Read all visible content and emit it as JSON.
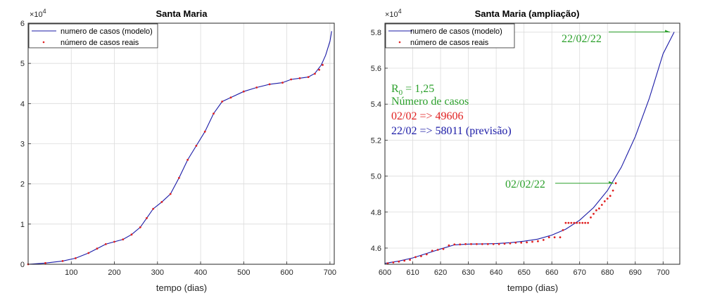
{
  "chart_data": [
    {
      "type": "line",
      "title": "Santa Maria",
      "xlabel": "tempo (dias)",
      "ylabel": "",
      "xlim": [
        0,
        710
      ],
      "ylim": [
        0,
        60000
      ],
      "y_exponent_label": "×10",
      "y_exponent_power": "4",
      "xticks": [
        100,
        200,
        300,
        400,
        500,
        600,
        700
      ],
      "yticks": [
        0,
        1,
        2,
        3,
        4,
        5,
        6
      ],
      "grid": true,
      "legend_position": "top-left",
      "series": [
        {
          "name": "numero de casos (modelo)",
          "style": "line",
          "color": "#1a1aa6",
          "x": [
            0,
            40,
            80,
            110,
            140,
            160,
            180,
            200,
            220,
            240,
            260,
            275,
            290,
            310,
            330,
            350,
            370,
            390,
            410,
            430,
            450,
            470,
            500,
            530,
            560,
            590,
            610,
            630,
            650,
            665,
            680,
            690,
            700,
            704
          ],
          "y": [
            0,
            300,
            800,
            1500,
            2800,
            3900,
            5000,
            5600,
            6200,
            7400,
            9200,
            11500,
            13800,
            15500,
            17500,
            21500,
            26000,
            29500,
            33000,
            37500,
            40500,
            41500,
            43000,
            44000,
            44800,
            45200,
            46000,
            46300,
            46600,
            47500,
            49606,
            52000,
            55500,
            58011
          ]
        },
        {
          "name": "número de casos reais",
          "style": "dots",
          "color": "#e02020",
          "x": [
            0,
            40,
            80,
            110,
            140,
            160,
            180,
            200,
            220,
            240,
            260,
            275,
            290,
            310,
            330,
            350,
            370,
            390,
            410,
            430,
            450,
            470,
            500,
            530,
            560,
            590,
            610,
            630,
            650,
            665,
            675,
            683
          ],
          "y": [
            0,
            300,
            800,
            1500,
            2800,
            3900,
            5000,
            5600,
            6200,
            7400,
            9200,
            11500,
            13800,
            15500,
            17500,
            21500,
            26000,
            29500,
            33000,
            37500,
            40500,
            41500,
            43000,
            44000,
            44800,
            45200,
            46000,
            46300,
            46600,
            47400,
            48400,
            49606
          ]
        }
      ]
    },
    {
      "type": "line",
      "title": "Santa Maria (ampliação)",
      "xlabel": "tempo (dias)",
      "ylabel": "",
      "xlim": [
        600,
        706
      ],
      "ylim": [
        45100,
        58500
      ],
      "y_exponent_label": "×10",
      "y_exponent_power": "4",
      "xticks": [
        600,
        610,
        620,
        630,
        640,
        650,
        660,
        670,
        680,
        690,
        700
      ],
      "yticks": [
        4.6,
        4.8,
        5,
        5.2,
        5.4,
        5.6,
        5.8
      ],
      "grid": true,
      "legend_position": "top-left",
      "series": [
        {
          "name": "numero de casos (modelo)",
          "style": "line",
          "color": "#1a1aa6",
          "x": [
            600,
            605,
            610,
            615,
            620,
            625,
            630,
            635,
            640,
            645,
            650,
            655,
            660,
            665,
            670,
            675,
            680,
            685,
            690,
            695,
            700,
            704
          ],
          "y": [
            45150,
            45280,
            45450,
            45700,
            45950,
            46180,
            46220,
            46230,
            46250,
            46300,
            46380,
            46500,
            46720,
            47050,
            47550,
            48250,
            49200,
            50500,
            52200,
            54300,
            56800,
            58011
          ]
        },
        {
          "name": "número de casos reais",
          "style": "dots",
          "color": "#e02020",
          "x": [
            601,
            603,
            605,
            607,
            609,
            611,
            613,
            615,
            617,
            619,
            621,
            623,
            625,
            627,
            629,
            631,
            633,
            635,
            637,
            639,
            641,
            643,
            645,
            647,
            649,
            651,
            653,
            655,
            657,
            659,
            661,
            663,
            664,
            665,
            666,
            667,
            668,
            669,
            670,
            671,
            672,
            673,
            674,
            675,
            676,
            677,
            678,
            679,
            680,
            681,
            682,
            683
          ],
          "y": [
            45150,
            45200,
            45250,
            45300,
            45350,
            45500,
            45550,
            45650,
            45850,
            45900,
            45950,
            46150,
            46200,
            46200,
            46220,
            46220,
            46220,
            46220,
            46220,
            46220,
            46220,
            46240,
            46260,
            46300,
            46300,
            46320,
            46350,
            46380,
            46450,
            46600,
            46600,
            46600,
            47000,
            47400,
            47400,
            47400,
            47400,
            47400,
            47400,
            47400,
            47400,
            47400,
            47700,
            47900,
            48100,
            48200,
            48400,
            48600,
            48750,
            48900,
            49200,
            49606
          ]
        }
      ],
      "annotations": {
        "r0": "R",
        "r0_sub": "0",
        "r0_value": " = 1,25",
        "line1": "Número de casos",
        "line2": "02/02 => 49606",
        "line3": "22/02 => 58011 (previsão)",
        "arrow_top_label": "22/02/22",
        "arrow_mid_label": "02/02/22",
        "color_green": "#2ca02c",
        "color_red": "#e02020",
        "color_blue": "#1a1aa6"
      }
    }
  ]
}
